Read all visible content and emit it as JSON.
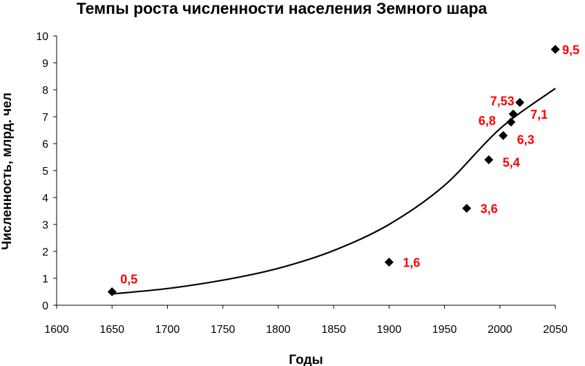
{
  "chart_data": {
    "type": "scatter",
    "title": "Темпы роста численности населения Земного шара",
    "xlabel": "Годы",
    "ylabel": "Численность, млрд. чел",
    "xlim": [
      1600,
      2050
    ],
    "ylim": [
      0,
      10
    ],
    "x_ticks": [
      1600,
      1650,
      1700,
      1750,
      1800,
      1850,
      1900,
      1950,
      2000,
      2050
    ],
    "y_ticks": [
      0,
      1,
      2,
      3,
      4,
      5,
      6,
      7,
      8,
      9,
      10
    ],
    "grid": false,
    "legend": "none",
    "series": [
      {
        "points": [
          {
            "x": 1650,
            "y": 0.5,
            "label": "0,5"
          },
          {
            "x": 1900,
            "y": 1.6,
            "label": "1,6"
          },
          {
            "x": 1970,
            "y": 3.6,
            "label": "3,6"
          },
          {
            "x": 1990,
            "y": 5.4,
            "label": "5,4"
          },
          {
            "x": 2003,
            "y": 6.3,
            "label": "6,3"
          },
          {
            "x": 2010,
            "y": 6.8,
            "label": "6,8"
          },
          {
            "x": 2012,
            "y": 7.1,
            "label": "7,1"
          },
          {
            "x": 2018,
            "y": 7.53,
            "label": "7,53"
          },
          {
            "x": 2050,
            "y": 9.5,
            "label": "9,5"
          }
        ]
      }
    ],
    "trendline": {
      "type": "exponential",
      "points": [
        {
          "x": 1650,
          "y": 0.42
        },
        {
          "x": 1700,
          "y": 0.62
        },
        {
          "x": 1750,
          "y": 0.93
        },
        {
          "x": 1800,
          "y": 1.37
        },
        {
          "x": 1850,
          "y": 2.03
        },
        {
          "x": 1900,
          "y": 3.0
        },
        {
          "x": 1950,
          "y": 4.45
        },
        {
          "x": 2000,
          "y": 6.55
        },
        {
          "x": 2050,
          "y": 8.05
        }
      ]
    },
    "colors": {
      "marker": "#000000",
      "data_label": "#ff0000",
      "trendline": "#000000",
      "axis": "#000000"
    }
  }
}
